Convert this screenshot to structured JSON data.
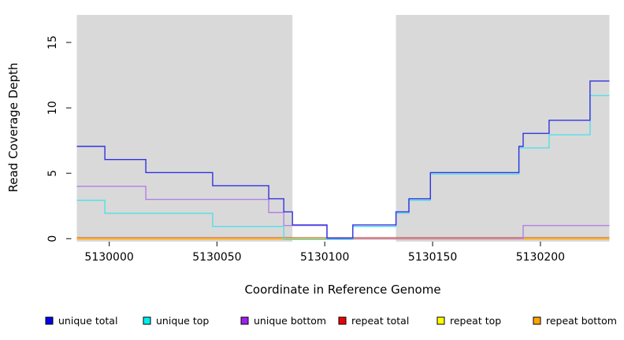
{
  "chart_data": {
    "type": "line",
    "subtype": "step",
    "title": "",
    "xlabel": "Coordinate in Reference Genome",
    "ylabel": "Read Coverage Depth",
    "xlim": [
      5129985,
      5130232
    ],
    "ylim": [
      -0.22,
      17.1
    ],
    "x_ticks": [
      {
        "value": 5130000,
        "label": "5130000"
      },
      {
        "value": 5130050,
        "label": "5130050"
      },
      {
        "value": 5130100,
        "label": "5130100"
      },
      {
        "value": 5130150,
        "label": "5130150"
      },
      {
        "value": 5130200,
        "label": "5130200"
      }
    ],
    "y_ticks": [
      {
        "value": 0,
        "label": "0"
      },
      {
        "value": 5,
        "label": "5"
      },
      {
        "value": 10,
        "label": "10"
      },
      {
        "value": 15,
        "label": "15"
      }
    ],
    "grid": false,
    "plot_bg_color": "#d9d9d9",
    "outer_bg_color": "#ffffff",
    "highlight_band": {
      "x_start": 5130085,
      "x_end": 5130133,
      "color": "#ffffff"
    },
    "series": [
      {
        "key": "repeat-total",
        "label": "repeat total",
        "color": "#ee0000",
        "line_color": "#c93333",
        "dy": -1.1,
        "steps": [
          [
            5129985,
            0
          ]
        ]
      },
      {
        "key": "repeat-top",
        "label": "repeat top",
        "color": "#ffff00",
        "line_color": "#f2e52e",
        "dy": -0.4,
        "steps": [
          [
            5129985,
            0
          ]
        ]
      },
      {
        "key": "repeat-bottom",
        "label": "repeat bottom",
        "color": "#ffa500",
        "line_color": "#ffa51e",
        "dy": 0.4,
        "steps": [
          [
            5129985,
            0
          ]
        ]
      },
      {
        "key": "unique-bottom",
        "label": "unique bottom",
        "color": "#a020f0",
        "line_color": "#b27fe6",
        "dy": -0.1,
        "steps": [
          [
            5129985,
            4
          ],
          [
            5130017,
            3
          ],
          [
            5130074,
            2
          ],
          [
            5130081,
            1
          ],
          [
            5130101,
            0
          ],
          [
            5130192,
            1
          ]
        ]
      },
      {
        "key": "unique-top",
        "label": "unique top",
        "color": "#00eeee",
        "line_color": "#52dfe8",
        "dy": 1.0,
        "steps": [
          [
            5129985,
            3
          ],
          [
            5129998,
            2
          ],
          [
            5130048,
            1
          ],
          [
            5130081,
            0
          ],
          [
            5130113,
            1
          ],
          [
            5130133,
            2
          ],
          [
            5130139,
            3
          ],
          [
            5130149,
            5
          ],
          [
            5130190,
            7
          ],
          [
            5130204,
            8
          ],
          [
            5130223,
            11
          ]
        ]
      },
      {
        "key": "unique-total",
        "label": "unique total",
        "color": "#0000ee",
        "line_color": "#3232e2",
        "dy": -0.9,
        "steps": [
          [
            5129985,
            7
          ],
          [
            5129998,
            6
          ],
          [
            5130017,
            5
          ],
          [
            5130048,
            4
          ],
          [
            5130074,
            3
          ],
          [
            5130081,
            2
          ],
          [
            5130085,
            1
          ],
          [
            5130101,
            0
          ],
          [
            5130113,
            1
          ],
          [
            5130133,
            2
          ],
          [
            5130139,
            3
          ],
          [
            5130149,
            5
          ],
          [
            5130190,
            7
          ],
          [
            5130192,
            8
          ],
          [
            5130204,
            9
          ],
          [
            5130223,
            12
          ]
        ]
      }
    ],
    "legend": {
      "position": "bottom",
      "entries": [
        {
          "label": "unique total",
          "color": "#0000ee"
        },
        {
          "label": "unique top",
          "color": "#00eeee"
        },
        {
          "label": "unique bottom",
          "color": "#a020f0"
        },
        {
          "label": "repeat total",
          "color": "#ee0000"
        },
        {
          "label": "repeat top",
          "color": "#ffff00"
        },
        {
          "label": "repeat bottom",
          "color": "#ffa500"
        }
      ]
    }
  }
}
